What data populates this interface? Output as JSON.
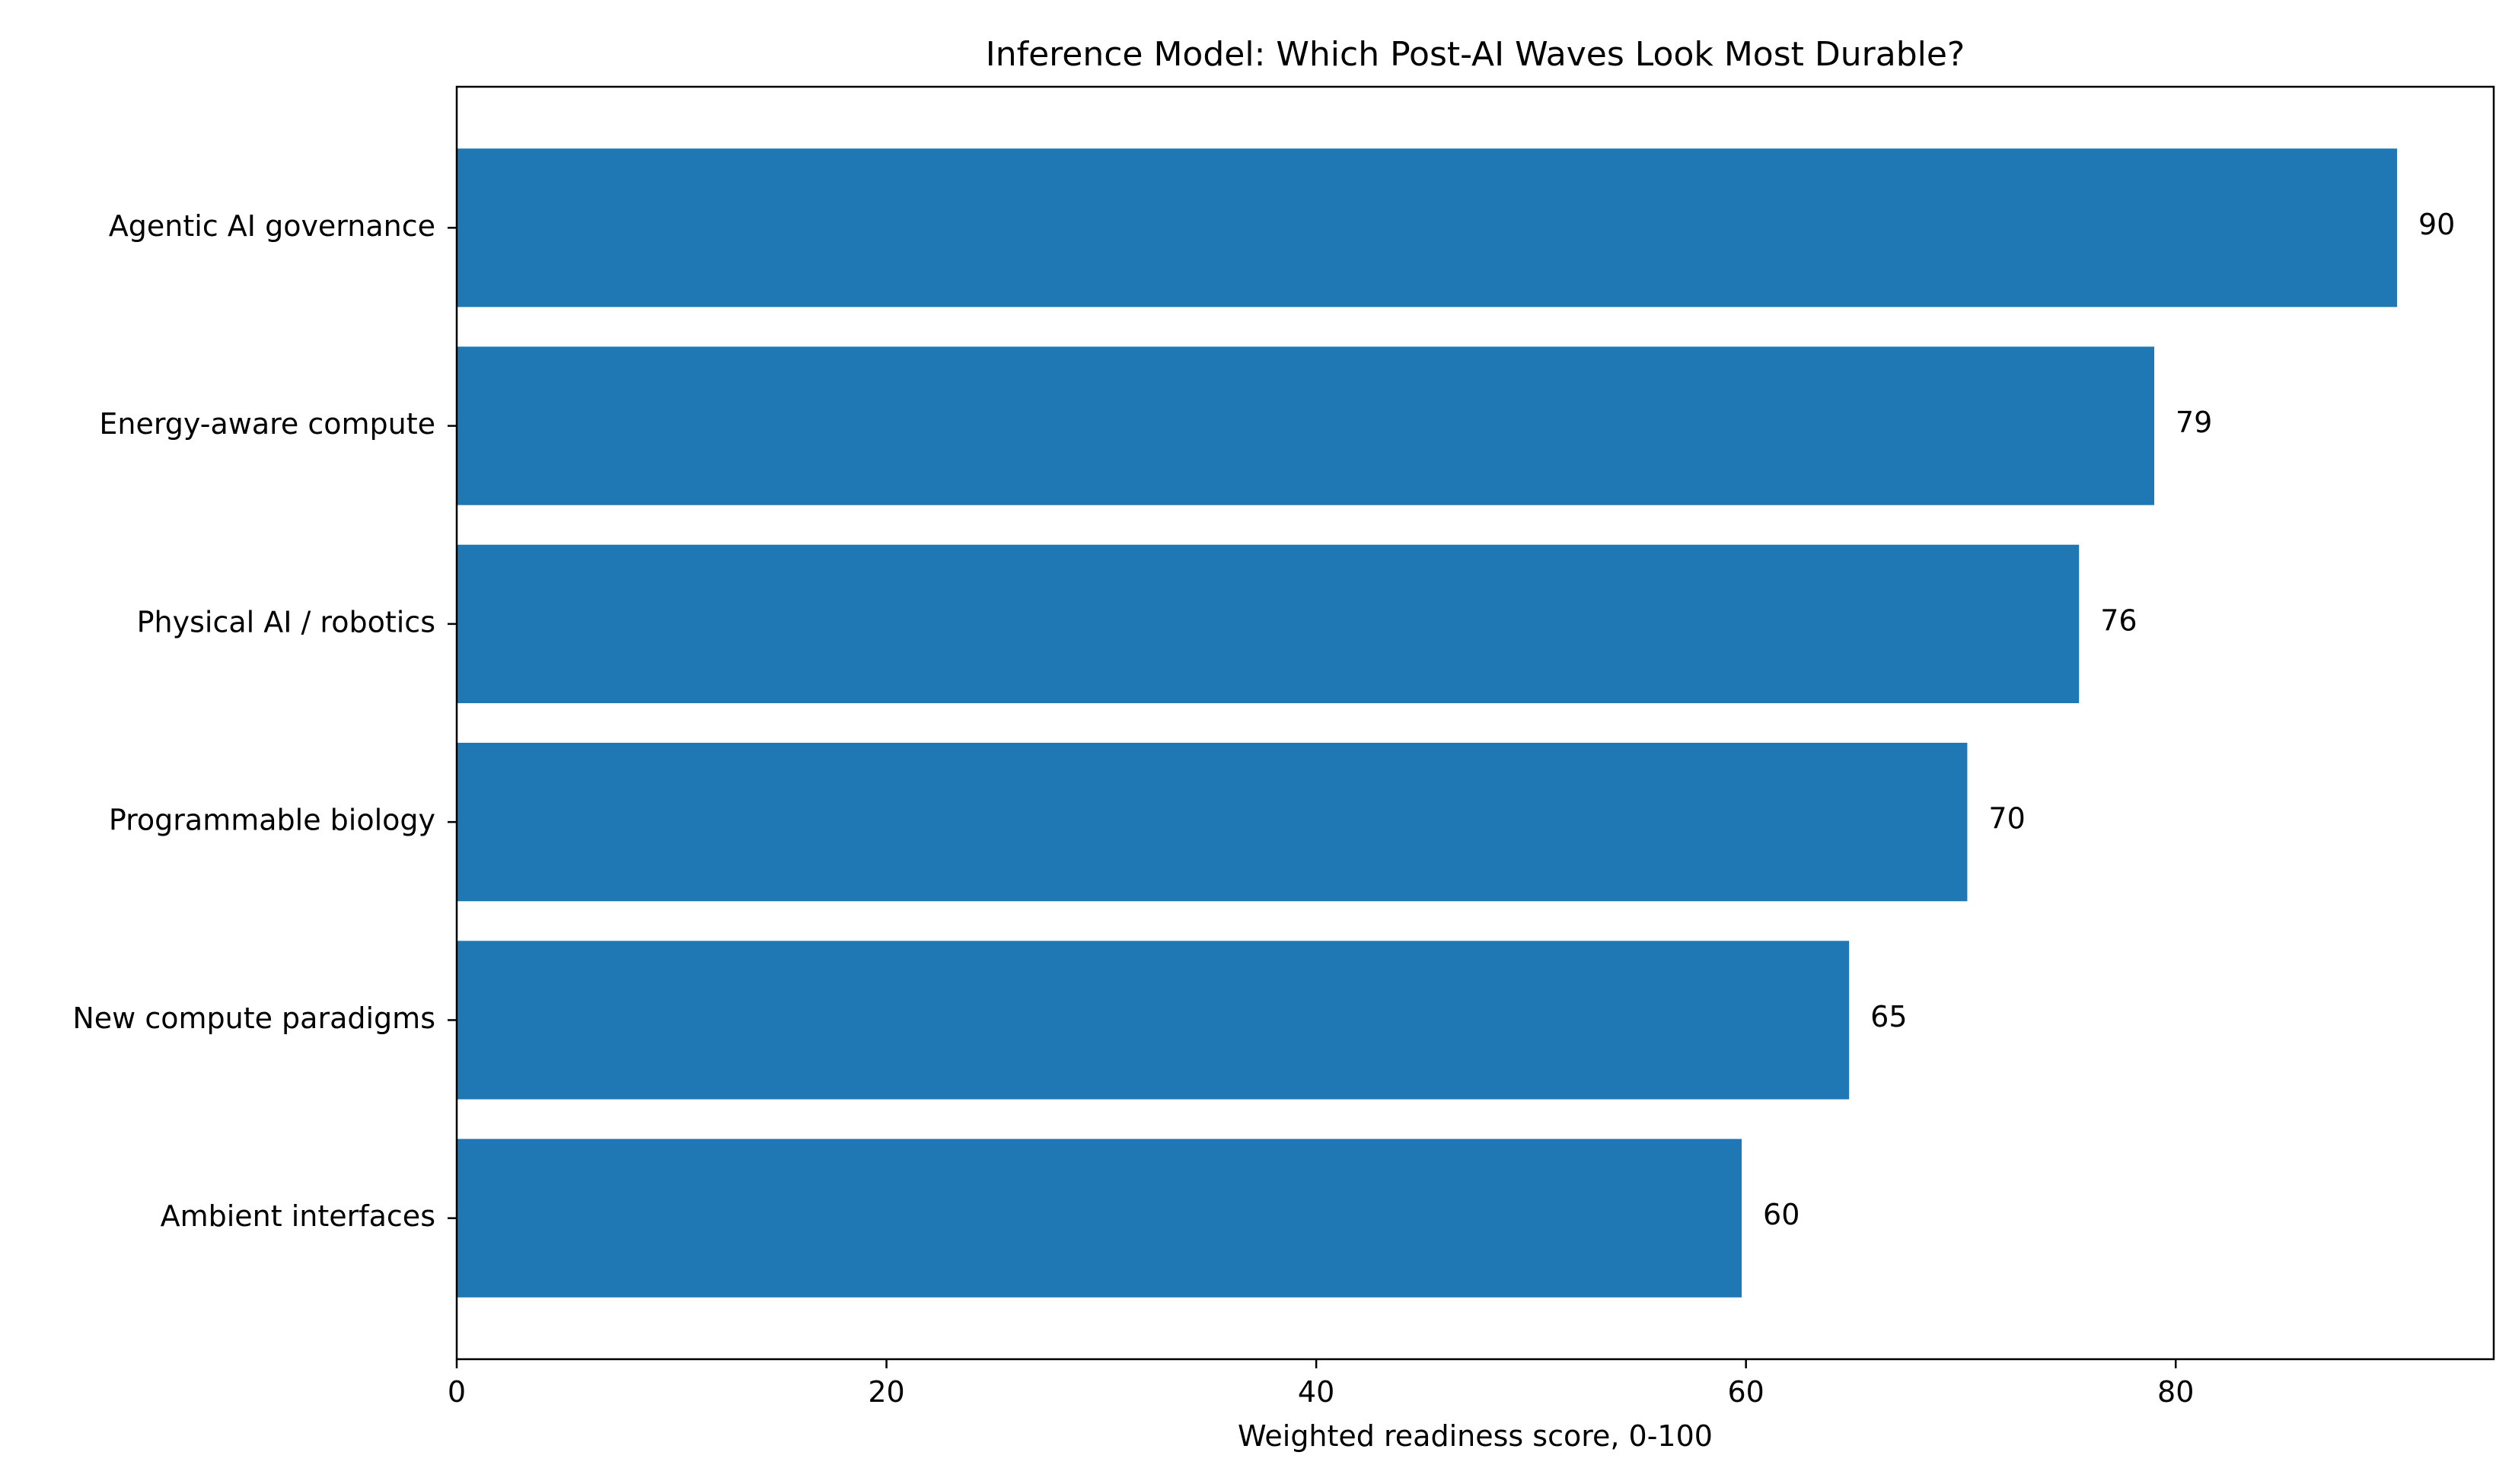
{
  "chart_data": {
    "type": "bar",
    "orientation": "horizontal",
    "title": "Inference Model: Which Post-AI Waves Look Most Durable?",
    "xlabel": "Weighted readiness score, 0-100",
    "ylabel": "",
    "categories": [
      "Agentic AI governance",
      "Energy-aware compute",
      "Physical AI / robotics",
      "Programmable biology",
      "New compute paradigms",
      "Ambient interfaces"
    ],
    "values": [
      90.3,
      79.0,
      75.5,
      70.3,
      64.8,
      59.8
    ],
    "value_labels": [
      "90",
      "79",
      "76",
      "70",
      "65",
      "60"
    ],
    "xticks": [
      0,
      20,
      40,
      60,
      80
    ],
    "xtick_labels": [
      "0",
      "20",
      "40",
      "60",
      "80"
    ],
    "xlim": [
      0,
      94.8
    ],
    "bar_color": "#1f77b4",
    "grid": false,
    "legend": "none"
  }
}
